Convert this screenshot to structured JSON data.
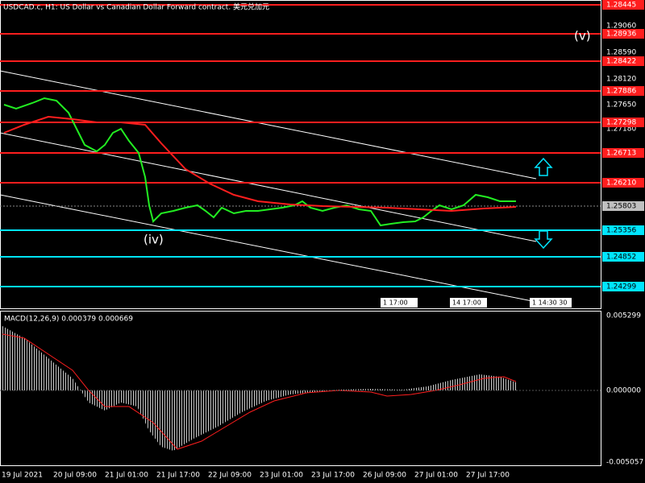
{
  "header": {
    "title": "USDCAD.c, H1:  US Dollar vs Canadian Dollar Forward contract. 美元兑加元"
  },
  "price_axis": [
    "1.29060",
    "1.28590",
    "1.28120",
    "1.27650",
    "1.27180"
  ],
  "levels": {
    "red": [
      "1.28445",
      "1.28936",
      "1.28422",
      "1.27886",
      "1.27298",
      "1.26713",
      "1.26210"
    ],
    "current": "1.25803",
    "cyan": [
      "1.25356",
      "1.24852",
      "1.24299"
    ]
  },
  "waves": [
    "(iv)",
    "(v)"
  ],
  "markers": [
    "1 17:00",
    "14 17:00",
    "1 14:30 30"
  ],
  "macd": {
    "label": "MACD(12,26,9) 0.000379 0.000669",
    "axis": [
      "0.005299",
      "0.000000",
      "-0.005057"
    ]
  },
  "time_axis": [
    "19 Jul 2021",
    "20 Jul 09:00",
    "21 Jul 01:00",
    "21 Jul 17:00",
    "22 Jul 09:00",
    "23 Jul 01:00",
    "23 Jul 17:00",
    "26 Jul 09:00",
    "27 Jul 01:00",
    "27 Jul 17:00"
  ]
}
